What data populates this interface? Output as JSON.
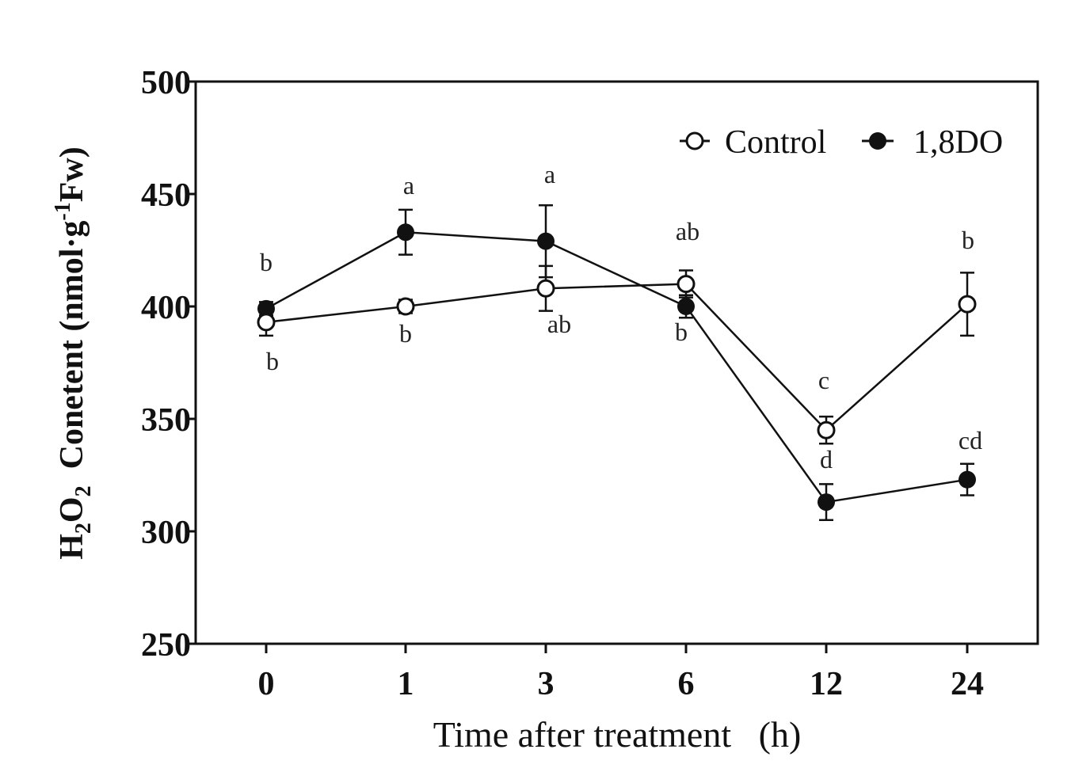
{
  "chart_data": {
    "type": "line",
    "xlabel": "Time after treatment   (h)",
    "ylabel": {
      "h": "H",
      "sub2a": "2",
      "o": "O",
      "sub2b": "2",
      "main": "  Conetent (nmol·g",
      "sup": "-1",
      "fw": "Fw)"
    },
    "categories": [
      "0",
      "1",
      "3",
      "6",
      "12",
      "24"
    ],
    "ylim": [
      250,
      500
    ],
    "yticks": [
      250,
      300,
      350,
      400,
      450,
      500
    ],
    "legend_position": "top-right",
    "series": [
      {
        "name": "Control",
        "marker": "open-circle",
        "values": [
          393,
          400,
          408,
          410,
          345,
          401
        ],
        "errors": [
          6,
          3,
          10,
          6,
          6,
          14
        ],
        "letters": [
          "b",
          "b",
          "ab",
          "ab",
          "c",
          "b"
        ]
      },
      {
        "name": "1,8DO",
        "marker": "filled-circle",
        "values": [
          399,
          433,
          429,
          400,
          313,
          323
        ],
        "errors": [
          3,
          10,
          16,
          5,
          8,
          7
        ],
        "letters": [
          "b",
          "a",
          "a",
          "b",
          "d",
          "cd"
        ]
      }
    ]
  }
}
